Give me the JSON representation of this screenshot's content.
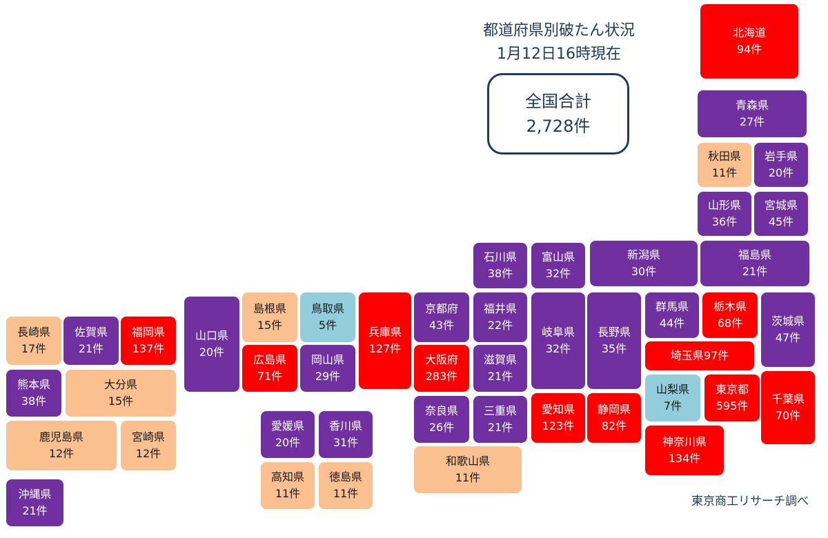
{
  "header": {
    "title": "都道府県別破たん状況",
    "subtitle": "1月12日16時現在"
  },
  "total": {
    "label": "全国合計",
    "value": "2,728件"
  },
  "credit": "東京商工リサーチ調べ",
  "colors": {
    "red": "#ff0000",
    "purple": "#7030a0",
    "peach": "#fac090",
    "lightblue": "#92cddc",
    "text_light": "#ffffff",
    "text_dark": "#1f3a5a"
  },
  "prefectures": [
    {
      "id": "hokkaido",
      "name": "北海道",
      "count": "94件",
      "color": "red"
    },
    {
      "id": "aomori",
      "name": "青森県",
      "count": "27件",
      "color": "purple"
    },
    {
      "id": "akita",
      "name": "秋田県",
      "count": "11件",
      "color": "peach"
    },
    {
      "id": "iwate",
      "name": "岩手県",
      "count": "20件",
      "color": "purple"
    },
    {
      "id": "yamagata",
      "name": "山形県",
      "count": "36件",
      "color": "purple"
    },
    {
      "id": "miyagi",
      "name": "宮城県",
      "count": "45件",
      "color": "purple"
    },
    {
      "id": "niigata",
      "name": "新潟県",
      "count": "30件",
      "color": "purple"
    },
    {
      "id": "fukushima",
      "name": "福島県",
      "count": "21件",
      "color": "purple"
    },
    {
      "id": "ishikawa",
      "name": "石川県",
      "count": "38件",
      "color": "purple"
    },
    {
      "id": "toyama",
      "name": "富山県",
      "count": "32件",
      "color": "purple"
    },
    {
      "id": "gunma",
      "name": "群馬県",
      "count": "44件",
      "color": "purple"
    },
    {
      "id": "tochigi",
      "name": "栃木県",
      "count": "68件",
      "color": "red"
    },
    {
      "id": "ibaraki",
      "name": "茨城県",
      "count": "47件",
      "color": "purple"
    },
    {
      "id": "saitama",
      "name": "埼玉県",
      "count": "97件",
      "color": "red"
    },
    {
      "id": "yamanashi",
      "name": "山梨県",
      "count": "7件",
      "color": "lightblue"
    },
    {
      "id": "tokyo",
      "name": "東京都",
      "count": "595件",
      "color": "red"
    },
    {
      "id": "chiba",
      "name": "千葉県",
      "count": "70件",
      "color": "red"
    },
    {
      "id": "kanagawa",
      "name": "神奈川県",
      "count": "134件",
      "color": "red"
    },
    {
      "id": "nagano",
      "name": "長野県",
      "count": "35件",
      "color": "purple"
    },
    {
      "id": "gifu",
      "name": "岐阜県",
      "count": "32件",
      "color": "purple"
    },
    {
      "id": "shizuoka",
      "name": "静岡県",
      "count": "82件",
      "color": "red"
    },
    {
      "id": "aichi",
      "name": "愛知県",
      "count": "123件",
      "color": "red"
    },
    {
      "id": "fukui",
      "name": "福井県",
      "count": "22件",
      "color": "purple"
    },
    {
      "id": "shiga",
      "name": "滋賀県",
      "count": "21件",
      "color": "purple"
    },
    {
      "id": "mie",
      "name": "三重県",
      "count": "21件",
      "color": "purple"
    },
    {
      "id": "kyoto",
      "name": "京都府",
      "count": "43件",
      "color": "purple"
    },
    {
      "id": "osaka",
      "name": "大阪府",
      "count": "283件",
      "color": "red"
    },
    {
      "id": "nara",
      "name": "奈良県",
      "count": "26件",
      "color": "purple"
    },
    {
      "id": "wakayama",
      "name": "和歌山県",
      "count": "11件",
      "color": "peach"
    },
    {
      "id": "hyogo",
      "name": "兵庫県",
      "count": "127件",
      "color": "red"
    },
    {
      "id": "tottori",
      "name": "鳥取県",
      "count": "5件",
      "color": "lightblue"
    },
    {
      "id": "shimane",
      "name": "島根県",
      "count": "15件",
      "color": "peach"
    },
    {
      "id": "okayama",
      "name": "岡山県",
      "count": "29件",
      "color": "purple"
    },
    {
      "id": "hiroshima",
      "name": "広島県",
      "count": "71件",
      "color": "red"
    },
    {
      "id": "yamaguchi",
      "name": "山口県",
      "count": "20件",
      "color": "purple"
    },
    {
      "id": "ehime",
      "name": "愛媛県",
      "count": "20件",
      "color": "purple"
    },
    {
      "id": "kagawa",
      "name": "香川県",
      "count": "31件",
      "color": "purple"
    },
    {
      "id": "kochi",
      "name": "高知県",
      "count": "11件",
      "color": "peach"
    },
    {
      "id": "tokushima",
      "name": "徳島県",
      "count": "11件",
      "color": "peach"
    },
    {
      "id": "fukuoka",
      "name": "福岡県",
      "count": "137件",
      "color": "red"
    },
    {
      "id": "saga",
      "name": "佐賀県",
      "count": "21件",
      "color": "purple"
    },
    {
      "id": "nagasaki",
      "name": "長崎県",
      "count": "17件",
      "color": "peach"
    },
    {
      "id": "kumamoto",
      "name": "熊本県",
      "count": "38件",
      "color": "purple"
    },
    {
      "id": "oita",
      "name": "大分県",
      "count": "15件",
      "color": "peach"
    },
    {
      "id": "kagoshima",
      "name": "鹿児島県",
      "count": "12件",
      "color": "peach"
    },
    {
      "id": "miyazaki",
      "name": "宮崎県",
      "count": "12件",
      "color": "peach"
    },
    {
      "id": "okinawa",
      "name": "沖縄県",
      "count": "21件",
      "color": "purple"
    }
  ]
}
